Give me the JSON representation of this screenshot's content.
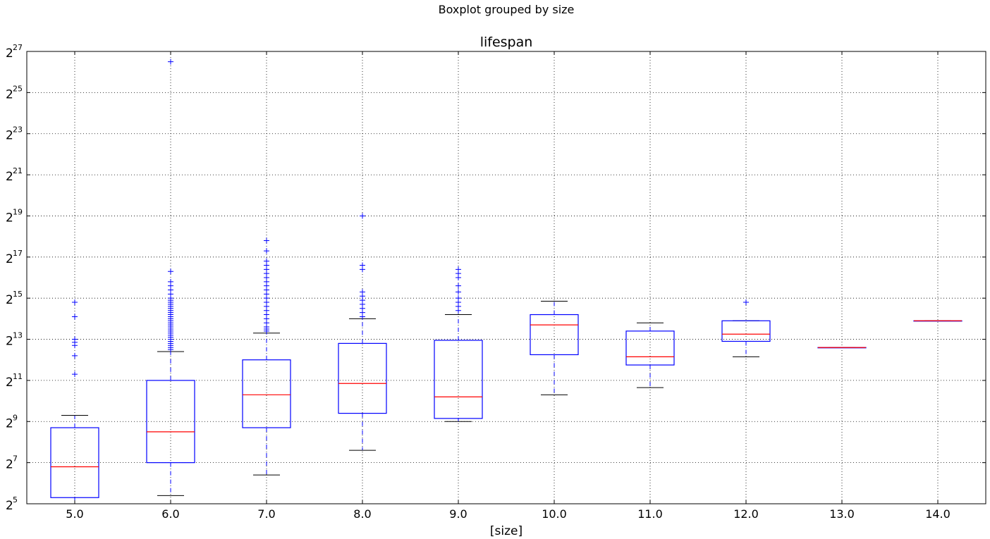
{
  "chart_data": {
    "type": "box",
    "suptitle": "Boxplot grouped by size",
    "title": "lifespan",
    "xlabel": "[size]",
    "ylabel": "",
    "y_scale": "log2",
    "ylim_exponent": [
      5,
      27
    ],
    "y_tick_base": "2",
    "y_tick_exponents": [
      "5",
      "7",
      "9",
      "11",
      "13",
      "15",
      "17",
      "19",
      "21",
      "23",
      "25",
      "27"
    ],
    "grid": true,
    "colors": {
      "box": "#0000ff",
      "median": "#ff0000",
      "cap": "#000000",
      "flier": "#0000ff"
    },
    "categories": [
      "5.0",
      "6.0",
      "7.0",
      "8.0",
      "9.0",
      "10.0",
      "11.0",
      "12.0",
      "13.0",
      "14.0"
    ],
    "series": [
      {
        "category": "5.0",
        "whisker_low_exp": 5.0,
        "q1_exp": 5.3,
        "median_exp": 6.8,
        "q3_exp": 8.7,
        "whisker_high_exp": 9.3,
        "fliers_exp": [
          11.3,
          12.2,
          12.7,
          12.85,
          13.0,
          14.1,
          14.8
        ]
      },
      {
        "category": "6.0",
        "whisker_low_exp": 5.4,
        "q1_exp": 7.0,
        "median_exp": 8.5,
        "q3_exp": 11.0,
        "whisker_high_exp": 12.4,
        "fliers_exp": [
          12.5,
          12.6,
          12.7,
          12.8,
          12.9,
          13.0,
          13.1,
          13.2,
          13.3,
          13.4,
          13.5,
          13.6,
          13.7,
          13.8,
          13.9,
          14.0,
          14.1,
          14.2,
          14.3,
          14.4,
          14.5,
          14.6,
          14.7,
          14.8,
          14.9,
          15.0,
          15.2,
          15.4,
          15.6,
          15.8,
          16.3,
          26.5
        ]
      },
      {
        "category": "7.0",
        "whisker_low_exp": 6.4,
        "q1_exp": 8.7,
        "median_exp": 10.3,
        "q3_exp": 12.0,
        "whisker_high_exp": 13.3,
        "fliers_exp": [
          13.4,
          13.5,
          13.6,
          13.8,
          14.0,
          14.2,
          14.4,
          14.6,
          14.8,
          15.0,
          15.2,
          15.4,
          15.6,
          15.8,
          16.0,
          16.2,
          16.4,
          16.6,
          16.8,
          17.3,
          17.8
        ]
      },
      {
        "category": "8.0",
        "whisker_low_exp": 7.6,
        "q1_exp": 9.4,
        "median_exp": 10.85,
        "q3_exp": 12.8,
        "whisker_high_exp": 14.0,
        "fliers_exp": [
          14.1,
          14.3,
          14.5,
          14.7,
          14.9,
          15.1,
          15.3,
          16.4,
          16.6,
          19.0
        ]
      },
      {
        "category": "9.0",
        "whisker_low_exp": 9.0,
        "q1_exp": 9.15,
        "median_exp": 10.2,
        "q3_exp": 12.95,
        "whisker_high_exp": 14.2,
        "fliers_exp": [
          14.4,
          14.6,
          14.8,
          15.0,
          15.3,
          15.6,
          16.0,
          16.2,
          16.4
        ]
      },
      {
        "category": "10.0",
        "whisker_low_exp": 10.3,
        "q1_exp": 12.25,
        "median_exp": 13.7,
        "q3_exp": 14.2,
        "whisker_high_exp": 14.85,
        "fliers_exp": []
      },
      {
        "category": "11.0",
        "whisker_low_exp": 10.65,
        "q1_exp": 11.75,
        "median_exp": 12.15,
        "q3_exp": 13.4,
        "whisker_high_exp": 13.8,
        "fliers_exp": []
      },
      {
        "category": "12.0",
        "whisker_low_exp": 12.15,
        "q1_exp": 12.9,
        "median_exp": 13.25,
        "q3_exp": 13.9,
        "whisker_high_exp": 13.9,
        "fliers_exp": [
          14.8
        ]
      },
      {
        "category": "13.0",
        "whisker_low_exp": 12.6,
        "q1_exp": 12.6,
        "median_exp": 12.6,
        "q3_exp": 12.6,
        "whisker_high_exp": 12.6,
        "fliers_exp": []
      },
      {
        "category": "14.0",
        "whisker_low_exp": 13.9,
        "q1_exp": 13.9,
        "median_exp": 13.9,
        "q3_exp": 13.9,
        "whisker_high_exp": 13.9,
        "fliers_exp": []
      }
    ]
  }
}
